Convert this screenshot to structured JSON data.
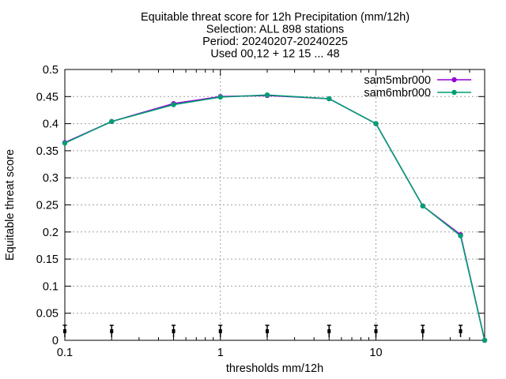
{
  "chart_data": {
    "type": "line",
    "title": [
      "Equitable threat score  for 12h Precipitation (mm/12h)",
      "Selection: ALL    898 stations",
      "Period: 20240207-20240225",
      "Used 00,12 + 12 15 ... 48"
    ],
    "xlabel": "thresholds mm/12h",
    "ylabel": "Equitable threat score",
    "x_scale": "log",
    "xlim": [
      0.1,
      50
    ],
    "ylim": [
      0,
      0.5
    ],
    "x_ticks": [
      0.1,
      1,
      10
    ],
    "x_tick_labels": [
      "0.1",
      "1",
      "10"
    ],
    "y_ticks": [
      0,
      0.05,
      0.1,
      0.15,
      0.2,
      0.25,
      0.3,
      0.35,
      0.4,
      0.45,
      0.5
    ],
    "y_tick_labels": [
      "0",
      "0.05",
      "0.1",
      "0.15",
      "0.2",
      "0.25",
      "0.3",
      "0.35",
      "0.4",
      "0.45",
      "0.5"
    ],
    "grid": true,
    "legend_position": "top-right",
    "x": [
      0.1,
      0.2,
      0.5,
      1,
      2,
      5,
      10,
      20,
      35,
      50
    ],
    "series": [
      {
        "name": "sam5mbr000",
        "color": "#9400d3",
        "values": [
          0.365,
          0.404,
          0.437,
          0.45,
          0.452,
          0.446,
          0.4,
          0.248,
          0.195,
          0.0
        ]
      },
      {
        "name": "sam6mbr000",
        "color": "#009e73",
        "values": [
          0.364,
          0.404,
          0.435,
          0.449,
          0.453,
          0.446,
          0.4,
          0.248,
          0.193,
          0.0
        ]
      }
    ],
    "sample_markers_x": [
      0.1,
      0.2,
      0.5,
      1,
      2,
      5,
      10,
      20,
      35
    ]
  }
}
